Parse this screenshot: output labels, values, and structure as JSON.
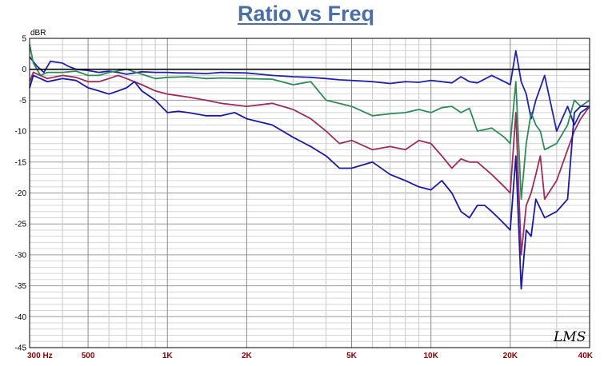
{
  "title": "Ratio vs Freq",
  "logo": "LMS",
  "chart_data": {
    "type": "line",
    "title": "Ratio vs Freq",
    "ylabel": "dBR",
    "xlabel": "",
    "xscale": "log",
    "xlim": [
      300,
      40000
    ],
    "ylim": [
      -45,
      5
    ],
    "grid": true,
    "yticks": [
      5,
      0,
      -5,
      -10,
      -15,
      -20,
      -25,
      -30,
      -35,
      -40,
      -45
    ],
    "xticks": [
      {
        "value": 300,
        "label": "300 Hz"
      },
      {
        "value": 500,
        "label": "500"
      },
      {
        "value": 1000,
        "label": "1K"
      },
      {
        "value": 2000,
        "label": "2K"
      },
      {
        "value": 5000,
        "label": "5K"
      },
      {
        "value": 10000,
        "label": "10K"
      },
      {
        "value": 20000,
        "label": "20K"
      },
      {
        "value": 40000,
        "label": "40K"
      }
    ],
    "series": [
      {
        "color": "#2222aa",
        "x": [
          300,
          320,
          340,
          360,
          400,
          420,
          450,
          500,
          550,
          600,
          650,
          700,
          800,
          900,
          1000,
          1100,
          1200,
          1400,
          1600,
          2000,
          2500,
          3000,
          3500,
          4000,
          4500,
          5000,
          6000,
          7000,
          8000,
          9000,
          10000,
          11000,
          12000,
          13000,
          14000,
          15000,
          17000,
          19000,
          20000,
          21000,
          22000,
          23000,
          24000,
          25000,
          27000,
          30000,
          33000,
          35000,
          37000,
          40000
        ],
        "y": [
          2,
          0.5,
          -0.5,
          1.3,
          1,
          0.5,
          0,
          -0.2,
          -0.5,
          -0.3,
          -0.5,
          -0.8,
          -0.4,
          -0.5,
          -0.5,
          -0.6,
          -0.6,
          -0.7,
          -0.5,
          -0.6,
          -1,
          -1.2,
          -1.3,
          -1.5,
          -1.7,
          -1.8,
          -2,
          -2.3,
          -2,
          -2.1,
          -1.8,
          -2,
          -2.2,
          -1.2,
          -2,
          -2.2,
          -1,
          -2,
          -2.5,
          3,
          -2,
          -4,
          -8,
          -5,
          -1,
          -10,
          -6,
          -9,
          -7,
          -6
        ]
      },
      {
        "color": "#2e8b57",
        "x": [
          300,
          310,
          330,
          350,
          400,
          450,
          500,
          550,
          600,
          700,
          800,
          900,
          1000,
          1200,
          1400,
          1600,
          2000,
          2500,
          3000,
          3500,
          4000,
          5000,
          6000,
          7000,
          8000,
          9000,
          10000,
          11000,
          12000,
          13000,
          14000,
          15000,
          17000,
          19000,
          20000,
          21000,
          22000,
          23000,
          24000,
          25000,
          26000,
          27000,
          30000,
          33000,
          35000,
          37000,
          40000
        ],
        "y": [
          4,
          1,
          -1,
          -0.5,
          -0.5,
          -0.3,
          -1,
          -1,
          -0.5,
          0,
          -0.8,
          -1.5,
          -1.3,
          -1.2,
          -1.5,
          -1.4,
          -1.5,
          -1.6,
          -2.5,
          -2,
          -5,
          -6,
          -7.5,
          -7.2,
          -7,
          -6.5,
          -7,
          -6.2,
          -6,
          -7,
          -6.3,
          -10,
          -9.5,
          -11,
          -12,
          -2,
          -21,
          -12,
          -7,
          -9,
          -10,
          -13,
          -12,
          -9,
          -5,
          -6,
          -5
        ]
      },
      {
        "color": "#9b2d5a",
        "x": [
          300,
          310,
          330,
          350,
          400,
          450,
          500,
          550,
          600,
          650,
          700,
          800,
          900,
          1000,
          1200,
          1400,
          1600,
          2000,
          2500,
          3000,
          3500,
          4000,
          4500,
          5000,
          6000,
          7000,
          8000,
          9000,
          10000,
          11000,
          12000,
          13000,
          14000,
          15000,
          17000,
          19000,
          20000,
          21000,
          22000,
          23000,
          24000,
          25000,
          26000,
          27000,
          30000,
          33000,
          35000,
          37000,
          40000
        ],
        "y": [
          -2,
          -0.5,
          -1,
          -1.5,
          -1,
          -1.3,
          -2,
          -2,
          -1.5,
          -1,
          -1.5,
          -2.5,
          -3.5,
          -4,
          -4.5,
          -5,
          -5.5,
          -6,
          -5.5,
          -6.5,
          -8,
          -10,
          -12,
          -11.5,
          -13,
          -12.5,
          -13,
          -11.5,
          -12,
          -14,
          -16,
          -14.5,
          -15,
          -15,
          -17,
          -19,
          -20,
          -7,
          -30,
          -22,
          -20,
          -17,
          -14,
          -21,
          -18,
          -13,
          -10,
          -8,
          -6
        ]
      },
      {
        "color": "#1a1aa0",
        "x": [
          300,
          310,
          330,
          350,
          400,
          450,
          500,
          550,
          600,
          650,
          700,
          750,
          800,
          900,
          1000,
          1100,
          1200,
          1400,
          1600,
          1800,
          2000,
          2500,
          3000,
          3500,
          4000,
          4500,
          5000,
          6000,
          7000,
          8000,
          9000,
          10000,
          11000,
          12000,
          13000,
          14000,
          15000,
          16000,
          17000,
          18000,
          19000,
          20000,
          21000,
          22000,
          23000,
          24000,
          25000,
          27000,
          30000,
          33000,
          35000,
          37000,
          40000
        ],
        "y": [
          -3,
          -1,
          -1.5,
          -2,
          -1.5,
          -1.8,
          -3,
          -3.5,
          -4,
          -3.5,
          -3,
          -2,
          -3.5,
          -5,
          -7,
          -6.8,
          -7,
          -7.5,
          -7.5,
          -7,
          -8,
          -9,
          -11,
          -12.5,
          -14,
          -16,
          -16,
          -15,
          -17,
          -18,
          -19,
          -19.5,
          -18,
          -20,
          -23,
          -24,
          -22,
          -22,
          -23,
          -24,
          -25,
          -26,
          -14,
          -35.5,
          -26,
          -27,
          -21,
          -24,
          -23,
          -21,
          -7,
          -6,
          -6
        ]
      }
    ]
  }
}
